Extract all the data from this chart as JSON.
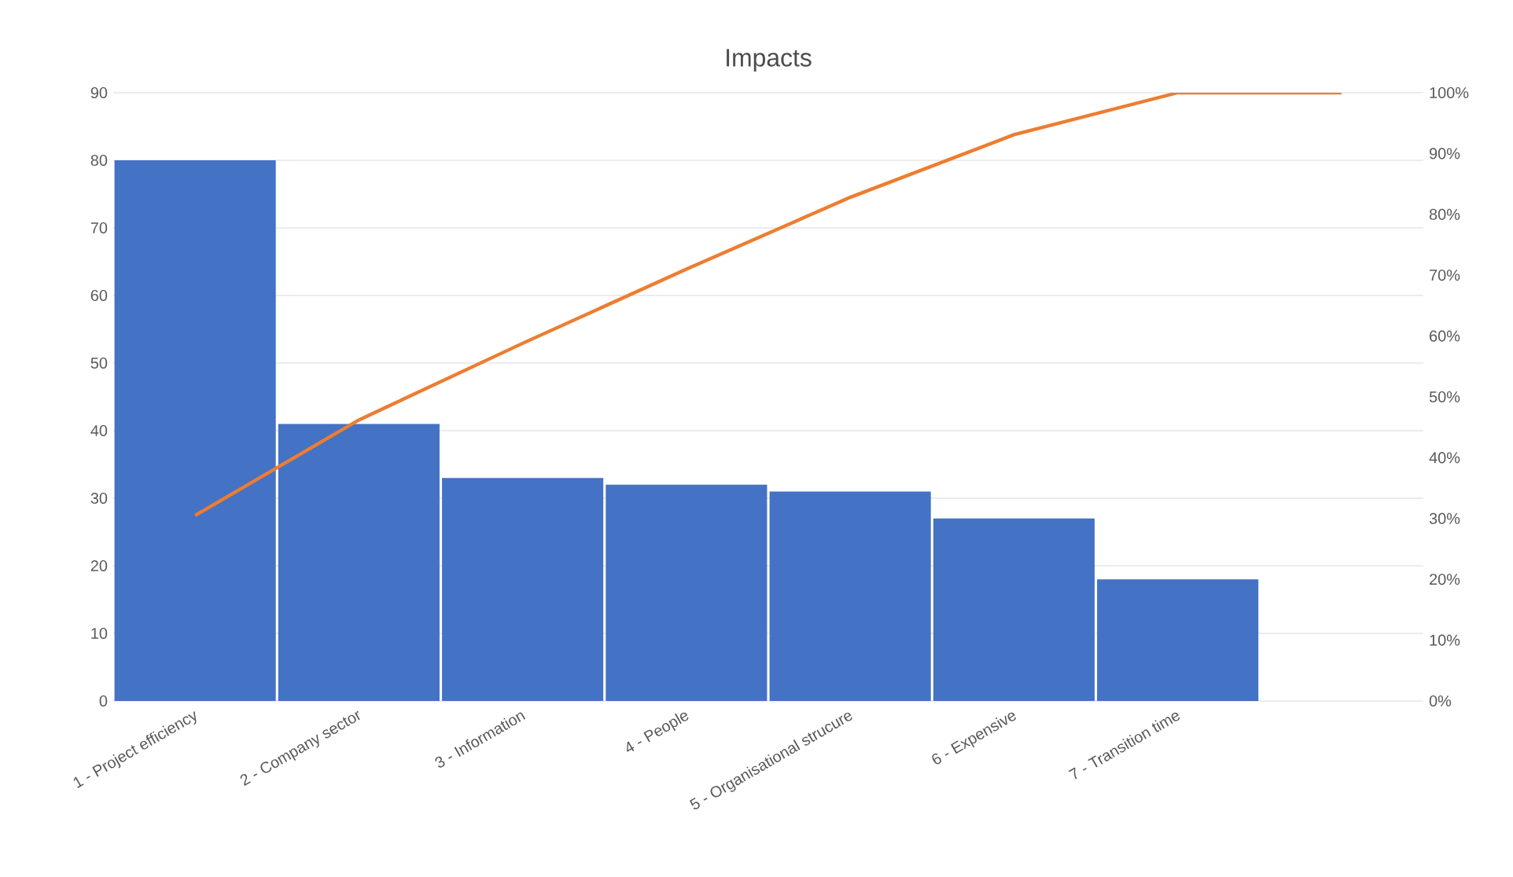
{
  "chart_data": {
    "type": "bar",
    "title": "Impacts",
    "categories": [
      "1 - Project efficiency",
      "2 - Company sector",
      "3 - Information",
      "4 - People",
      "5 - Organisational strucure",
      "6 - Expensive",
      "7 - Transition time",
      null
    ],
    "series": [
      {
        "color": "#4472c4",
        "values": [
          80,
          41,
          33,
          32,
          31,
          27,
          18,
          0
        ]
      },
      {
        "type": "line",
        "axis": "y2",
        "color": "#ed7d31",
        "marker": "none",
        "line_style": "solid",
        "values": [
          30.5,
          46.2,
          58.8,
          71.0,
          82.8,
          93.1,
          100,
          100
        ]
      }
    ],
    "ylim": [
      0,
      90
    ],
    "yticks": [
      0,
      10,
      20,
      30,
      40,
      50,
      60,
      70,
      80,
      90
    ],
    "y2lim": [
      0,
      100
    ],
    "y2ticks": [
      {
        "value": 0,
        "label": "0%"
      },
      {
        "value": 10,
        "label": "10%"
      },
      {
        "value": 20,
        "label": "20%"
      },
      {
        "value": 30,
        "label": "30%"
      },
      {
        "value": 40,
        "label": "40%"
      },
      {
        "value": 50,
        "label": "50%"
      },
      {
        "value": 60,
        "label": "60%"
      },
      {
        "value": 70,
        "label": "70%"
      },
      {
        "value": 80,
        "label": "80%"
      },
      {
        "value": 90,
        "label": "90%"
      },
      {
        "value": 100,
        "label": "100%"
      }
    ],
    "grid": "y"
  }
}
